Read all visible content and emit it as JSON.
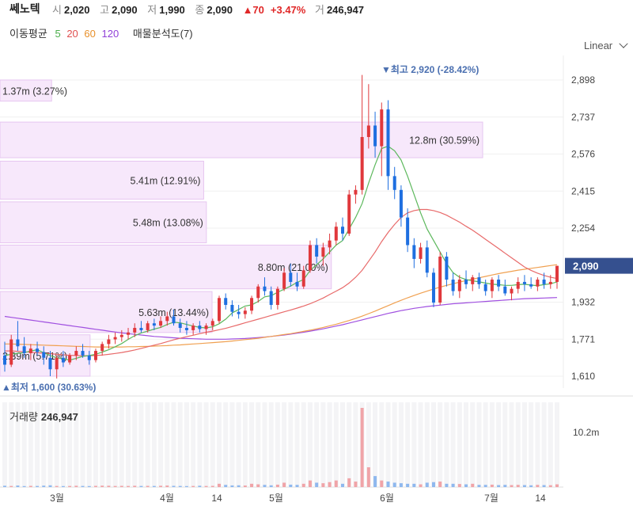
{
  "header": {
    "name": "쎄노텍",
    "open_label": "시",
    "open": "2,020",
    "high_label": "고",
    "high": "2,090",
    "low_label": "저",
    "low": "1,990",
    "close_label": "종",
    "close": "2,090",
    "change": "▲70",
    "change_pct": "+3.47%",
    "vol_label": "거",
    "volume": "246,947"
  },
  "legend": {
    "ma_label": "이동평균",
    "ma5": "5",
    "ma20": "20",
    "ma60": "60",
    "ma120": "120",
    "vp_label": "매물분석도(7)"
  },
  "scale": {
    "label": "Linear"
  },
  "price_axis": {
    "ticks": [
      "2,898",
      "2,737",
      "2,576",
      "2,415",
      "2,254",
      "1,932",
      "1,771",
      "1,610"
    ],
    "tick_values": [
      2898,
      2737,
      2576,
      2415,
      2254,
      1932,
      1771,
      1610
    ],
    "current": "2,090",
    "current_value": 2090
  },
  "annotations": {
    "high": "▼최고 2,920 (-28.42%)",
    "low": "▲최저 1,600 (30.63%)"
  },
  "volume_profile": [
    {
      "label": "1.37m (3.27%)",
      "low": 2806,
      "high": 2898,
      "pct": 3.27
    },
    {
      "label": "12.8m (30.59%)",
      "low": 2560,
      "high": 2715,
      "pct": 30.59
    },
    {
      "label": "5.41m (12.91%)",
      "low": 2380,
      "high": 2545,
      "pct": 12.91
    },
    {
      "label": "5.48m (13.08%)",
      "low": 2190,
      "high": 2368,
      "pct": 13.08
    },
    {
      "label": "8.80m (21.00%)",
      "low": 1990,
      "high": 2180,
      "pct": 21.0
    },
    {
      "label": "5.63m (13.44%)",
      "low": 1800,
      "high": 1978,
      "pct": 13.44
    },
    {
      "label": "2.39m (5.71%)",
      "low": 1610,
      "high": 1790,
      "pct": 5.71
    }
  ],
  "x_axis": {
    "ticks": [
      "3월",
      "4월",
      "14",
      "5월",
      "6월",
      "7월",
      "14"
    ]
  },
  "volume": {
    "title": "거래량",
    "value": "246,947",
    "axis_label": "10.2m",
    "axis_value": 10.2
  },
  "colors": {
    "up": "#e0383c",
    "down": "#1e6fe0",
    "ma5": "#5cb85c",
    "ma20": "#e86a6a",
    "ma60": "#f0a050",
    "ma120": "#a050e0",
    "vp_fill": "#f7e8fb",
    "vp_stroke": "#e6c6f0",
    "current_tag": "#35508f"
  },
  "chart_data": {
    "type": "candlestick",
    "title": "쎄노텍",
    "ylim": [
      1610,
      2920
    ],
    "candles": [
      {
        "o": 1700,
        "h": 1760,
        "l": 1630,
        "c": 1660
      },
      {
        "o": 1660,
        "h": 1790,
        "l": 1650,
        "c": 1770
      },
      {
        "o": 1770,
        "h": 1850,
        "l": 1720,
        "c": 1740
      },
      {
        "o": 1740,
        "h": 1780,
        "l": 1690,
        "c": 1710
      },
      {
        "o": 1710,
        "h": 1750,
        "l": 1680,
        "c": 1730
      },
      {
        "o": 1730,
        "h": 1760,
        "l": 1700,
        "c": 1715
      },
      {
        "o": 1715,
        "h": 1740,
        "l": 1660,
        "c": 1690
      },
      {
        "o": 1690,
        "h": 1720,
        "l": 1610,
        "c": 1640
      },
      {
        "o": 1640,
        "h": 1700,
        "l": 1600,
        "c": 1690
      },
      {
        "o": 1690,
        "h": 1720,
        "l": 1650,
        "c": 1670
      },
      {
        "o": 1670,
        "h": 1710,
        "l": 1660,
        "c": 1700
      },
      {
        "o": 1700,
        "h": 1740,
        "l": 1680,
        "c": 1720
      },
      {
        "o": 1720,
        "h": 1750,
        "l": 1690,
        "c": 1700
      },
      {
        "o": 1700,
        "h": 1720,
        "l": 1660,
        "c": 1680
      },
      {
        "o": 1680,
        "h": 1730,
        "l": 1670,
        "c": 1720
      },
      {
        "o": 1720,
        "h": 1760,
        "l": 1700,
        "c": 1750
      },
      {
        "o": 1750,
        "h": 1790,
        "l": 1730,
        "c": 1770
      },
      {
        "o": 1770,
        "h": 1800,
        "l": 1750,
        "c": 1780
      },
      {
        "o": 1780,
        "h": 1810,
        "l": 1760,
        "c": 1790
      },
      {
        "o": 1790,
        "h": 1820,
        "l": 1770,
        "c": 1800
      },
      {
        "o": 1800,
        "h": 1840,
        "l": 1780,
        "c": 1820
      },
      {
        "o": 1820,
        "h": 1850,
        "l": 1800,
        "c": 1810
      },
      {
        "o": 1810,
        "h": 1850,
        "l": 1800,
        "c": 1840
      },
      {
        "o": 1840,
        "h": 1860,
        "l": 1810,
        "c": 1830
      },
      {
        "o": 1830,
        "h": 1870,
        "l": 1820,
        "c": 1850
      },
      {
        "o": 1850,
        "h": 1890,
        "l": 1830,
        "c": 1870
      },
      {
        "o": 1870,
        "h": 1900,
        "l": 1830,
        "c": 1840
      },
      {
        "o": 1840,
        "h": 1860,
        "l": 1800,
        "c": 1820
      },
      {
        "o": 1820,
        "h": 1850,
        "l": 1790,
        "c": 1810
      },
      {
        "o": 1810,
        "h": 1840,
        "l": 1790,
        "c": 1830
      },
      {
        "o": 1830,
        "h": 1850,
        "l": 1800,
        "c": 1815
      },
      {
        "o": 1815,
        "h": 1840,
        "l": 1790,
        "c": 1830
      },
      {
        "o": 1830,
        "h": 1860,
        "l": 1810,
        "c": 1850
      },
      {
        "o": 1850,
        "h": 1960,
        "l": 1840,
        "c": 1950
      },
      {
        "o": 1950,
        "h": 1970,
        "l": 1900,
        "c": 1920
      },
      {
        "o": 1920,
        "h": 1940,
        "l": 1870,
        "c": 1890
      },
      {
        "o": 1890,
        "h": 1920,
        "l": 1860,
        "c": 1880
      },
      {
        "o": 1880,
        "h": 1910,
        "l": 1860,
        "c": 1895
      },
      {
        "o": 1895,
        "h": 1960,
        "l": 1880,
        "c": 1950
      },
      {
        "o": 1950,
        "h": 2010,
        "l": 1930,
        "c": 2000
      },
      {
        "o": 2000,
        "h": 2040,
        "l": 1960,
        "c": 1980
      },
      {
        "o": 1980,
        "h": 2000,
        "l": 1900,
        "c": 1920
      },
      {
        "o": 1920,
        "h": 2000,
        "l": 1900,
        "c": 1990
      },
      {
        "o": 1990,
        "h": 2080,
        "l": 1980,
        "c": 2060
      },
      {
        "o": 2060,
        "h": 2100,
        "l": 2000,
        "c": 2020
      },
      {
        "o": 2020,
        "h": 2060,
        "l": 1980,
        "c": 2000
      },
      {
        "o": 2000,
        "h": 2090,
        "l": 1990,
        "c": 2070
      },
      {
        "o": 2070,
        "h": 2200,
        "l": 2060,
        "c": 2180
      },
      {
        "o": 2180,
        "h": 2210,
        "l": 2100,
        "c": 2130
      },
      {
        "o": 2130,
        "h": 2190,
        "l": 2090,
        "c": 2170
      },
      {
        "o": 2170,
        "h": 2230,
        "l": 2140,
        "c": 2200
      },
      {
        "o": 2200,
        "h": 2280,
        "l": 2180,
        "c": 2260
      },
      {
        "o": 2260,
        "h": 2300,
        "l": 2200,
        "c": 2230
      },
      {
        "o": 2230,
        "h": 2420,
        "l": 2220,
        "c": 2400
      },
      {
        "o": 2400,
        "h": 2440,
        "l": 2360,
        "c": 2420
      },
      {
        "o": 2420,
        "h": 2920,
        "l": 2400,
        "c": 2650
      },
      {
        "o": 2650,
        "h": 2880,
        "l": 2600,
        "c": 2700
      },
      {
        "o": 2700,
        "h": 2760,
        "l": 2560,
        "c": 2610
      },
      {
        "o": 2610,
        "h": 2800,
        "l": 2480,
        "c": 2770
      },
      {
        "o": 2770,
        "h": 2810,
        "l": 2420,
        "c": 2480
      },
      {
        "o": 2480,
        "h": 2520,
        "l": 2380,
        "c": 2420
      },
      {
        "o": 2420,
        "h": 2440,
        "l": 2260,
        "c": 2300
      },
      {
        "o": 2300,
        "h": 2340,
        "l": 2150,
        "c": 2180
      },
      {
        "o": 2180,
        "h": 2210,
        "l": 2080,
        "c": 2120
      },
      {
        "o": 2120,
        "h": 2190,
        "l": 2100,
        "c": 2170
      },
      {
        "o": 2170,
        "h": 2200,
        "l": 2040,
        "c": 2060
      },
      {
        "o": 2060,
        "h": 2080,
        "l": 1910,
        "c": 1930
      },
      {
        "o": 1930,
        "h": 2150,
        "l": 1920,
        "c": 2130
      },
      {
        "o": 2130,
        "h": 2150,
        "l": 2000,
        "c": 2030
      },
      {
        "o": 2030,
        "h": 2060,
        "l": 1960,
        "c": 1980
      },
      {
        "o": 1980,
        "h": 2050,
        "l": 1950,
        "c": 2030
      },
      {
        "o": 2030,
        "h": 2070,
        "l": 1990,
        "c": 2010
      },
      {
        "o": 2010,
        "h": 2050,
        "l": 1980,
        "c": 2040
      },
      {
        "o": 2040,
        "h": 2060,
        "l": 1990,
        "c": 2010
      },
      {
        "o": 2010,
        "h": 2030,
        "l": 1960,
        "c": 1980
      },
      {
        "o": 1980,
        "h": 2040,
        "l": 1950,
        "c": 2030
      },
      {
        "o": 2030,
        "h": 2050,
        "l": 1980,
        "c": 2000
      },
      {
        "o": 2000,
        "h": 2030,
        "l": 1960,
        "c": 1970
      },
      {
        "o": 1970,
        "h": 2000,
        "l": 1940,
        "c": 1990
      },
      {
        "o": 1990,
        "h": 2040,
        "l": 1970,
        "c": 2020
      },
      {
        "o": 2020,
        "h": 2050,
        "l": 1980,
        "c": 2010
      },
      {
        "o": 2010,
        "h": 2040,
        "l": 1990,
        "c": 2000
      },
      {
        "o": 2000,
        "h": 2040,
        "l": 1980,
        "c": 2030
      },
      {
        "o": 2030,
        "h": 2060,
        "l": 1990,
        "c": 2010
      },
      {
        "o": 2010,
        "h": 2050,
        "l": 1990,
        "c": 2020
      },
      {
        "o": 2020,
        "h": 2090,
        "l": 1990,
        "c": 2090
      }
    ],
    "ma": {
      "ma5": [
        1700,
        1705,
        1710,
        1712,
        1720,
        1725,
        1712,
        1700,
        1690,
        1686,
        1680,
        1688,
        1696,
        1700,
        1705,
        1715,
        1725,
        1738,
        1752,
        1770,
        1786,
        1798,
        1806,
        1815,
        1822,
        1835,
        1845,
        1842,
        1835,
        1828,
        1822,
        1820,
        1825,
        1838,
        1858,
        1885,
        1900,
        1915,
        1920,
        1935,
        1955,
        1960,
        1975,
        1988,
        2002,
        2018,
        2030,
        2070,
        2095,
        2120,
        2150,
        2180,
        2200,
        2250,
        2300,
        2360,
        2450,
        2530,
        2600,
        2610,
        2590,
        2550,
        2480,
        2400,
        2320,
        2250,
        2200,
        2150,
        2100,
        2060,
        2040,
        2030,
        2025,
        2020,
        2015,
        2010,
        2008,
        2005,
        2005,
        2008,
        2010,
        2006,
        2004,
        2008,
        2012,
        2020
      ],
      "ma20": [
        1720,
        1720,
        1718,
        1716,
        1714,
        1712,
        1710,
        1708,
        1705,
        1703,
        1701,
        1700,
        1699,
        1699,
        1700,
        1702,
        1705,
        1709,
        1713,
        1718,
        1724,
        1731,
        1738,
        1745,
        1752,
        1760,
        1768,
        1775,
        1782,
        1788,
        1795,
        1801,
        1806,
        1812,
        1818,
        1826,
        1834,
        1842,
        1850,
        1858,
        1866,
        1874,
        1882,
        1890,
        1898,
        1906,
        1915,
        1925,
        1937,
        1950,
        1965,
        1980,
        1995,
        2015,
        2040,
        2070,
        2110,
        2150,
        2195,
        2235,
        2270,
        2300,
        2320,
        2330,
        2335,
        2335,
        2330,
        2322,
        2310,
        2295,
        2280,
        2262,
        2245,
        2225,
        2205,
        2185,
        2165,
        2145,
        2125,
        2105,
        2085,
        2070,
        2058,
        2048,
        2040,
        2035
      ],
      "ma60": [
        1750,
        1750,
        1749,
        1748,
        1747,
        1746,
        1745,
        1744,
        1743,
        1742,
        1741,
        1740,
        1739,
        1738,
        1737,
        1737,
        1737,
        1737,
        1737,
        1738,
        1738,
        1739,
        1740,
        1741,
        1742,
        1743,
        1745,
        1746,
        1748,
        1750,
        1752,
        1754,
        1756,
        1758,
        1760,
        1763,
        1766,
        1769,
        1772,
        1775,
        1779,
        1783,
        1787,
        1791,
        1795,
        1800,
        1805,
        1810,
        1816,
        1822,
        1829,
        1836,
        1844,
        1852,
        1861,
        1871,
        1882,
        1893,
        1905,
        1917,
        1929,
        1940,
        1951,
        1961,
        1971,
        1980,
        1989,
        1997,
        2005,
        2012,
        2019,
        2026,
        2032,
        2038,
        2044,
        2050,
        2056,
        2061,
        2066,
        2071,
        2075,
        2079,
        2083,
        2087,
        2091,
        2095
      ],
      "ma120": [
        1870,
        1866,
        1862,
        1858,
        1854,
        1850,
        1846,
        1842,
        1838,
        1834,
        1830,
        1826,
        1822,
        1818,
        1814,
        1810,
        1806,
        1802,
        1798,
        1795,
        1792,
        1789,
        1786,
        1783,
        1781,
        1779,
        1777,
        1775,
        1774,
        1773,
        1772,
        1771,
        1771,
        1771,
        1771,
        1772,
        1773,
        1774,
        1776,
        1778,
        1780,
        1783,
        1786,
        1789,
        1793,
        1797,
        1801,
        1806,
        1811,
        1816,
        1822,
        1828,
        1834,
        1841,
        1848,
        1855,
        1862,
        1869,
        1876,
        1883,
        1889,
        1895,
        1900,
        1905,
        1909,
        1913,
        1916,
        1919,
        1922,
        1925,
        1927,
        1929,
        1931,
        1933,
        1935,
        1937,
        1939,
        1941,
        1943,
        1945,
        1947,
        1948,
        1949,
        1950,
        1951,
        1952
      ]
    },
    "volume_series": [
      0.12,
      0.1,
      0.14,
      0.09,
      0.11,
      0.1,
      0.13,
      0.16,
      0.1,
      0.09,
      0.1,
      0.12,
      0.1,
      0.09,
      0.11,
      0.13,
      0.12,
      0.1,
      0.11,
      0.1,
      0.12,
      0.1,
      0.11,
      0.1,
      0.12,
      0.14,
      0.11,
      0.1,
      0.09,
      0.1,
      0.12,
      0.1,
      0.11,
      0.3,
      0.2,
      0.15,
      0.16,
      0.14,
      0.3,
      0.25,
      0.2,
      0.16,
      0.22,
      0.4,
      0.22,
      0.2,
      0.3,
      0.6,
      0.4,
      0.35,
      0.45,
      0.6,
      0.3,
      0.8,
      0.5,
      7.2,
      1.8,
      1.0,
      0.6,
      0.5,
      0.4,
      0.35,
      0.3,
      0.3,
      0.25,
      0.4,
      0.45,
      0.5,
      0.3,
      0.3,
      0.28,
      0.25,
      0.3,
      0.2,
      0.2,
      0.22,
      0.18,
      0.2,
      0.18,
      0.2,
      0.18,
      0.16,
      0.2,
      0.18,
      0.17,
      0.25
    ]
  }
}
